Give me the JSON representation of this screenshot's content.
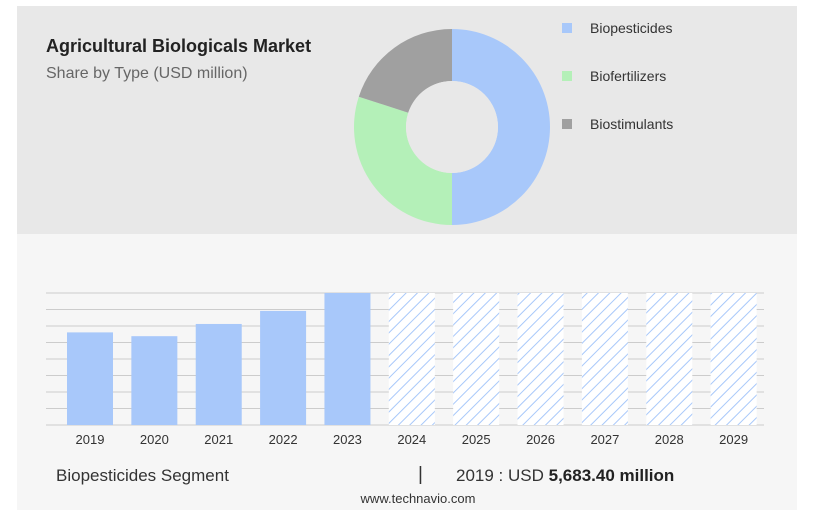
{
  "header": {
    "title": "Agricultural Biologicals Market",
    "subtitle": "Share by Type (USD million)"
  },
  "colors": {
    "biopesticides": "#a8c8fa",
    "biofertilizers": "#b4f0b8",
    "biostimulants": "#a0a0a0",
    "bar": "#a8c8fa",
    "forecast_hatch": "#a8c8fa",
    "top_panel": "#e8e8e8",
    "bottom_panel": "#f6f6f6"
  },
  "chart_data": [
    {
      "type": "pie",
      "variant": "donut",
      "title": "Share by Type (USD million)",
      "categories": [
        "Biopesticides",
        "Biofertilizers",
        "Biostimulants"
      ],
      "values": [
        50,
        30,
        20
      ],
      "legend": "right"
    },
    {
      "type": "bar",
      "categories": [
        "2019",
        "2020",
        "2021",
        "2022",
        "2023",
        "2024",
        "2025",
        "2026",
        "2027",
        "2028",
        "2029"
      ],
      "values": [
        5683.4,
        5450,
        6200,
        7000,
        8100,
        null,
        null,
        null,
        null,
        null,
        null
      ],
      "forecast": [
        "2024",
        "2025",
        "2026",
        "2027",
        "2028",
        "2029"
      ],
      "forecast_level": 8100,
      "ylim": [
        0,
        8100
      ],
      "grid": true,
      "series": [
        {
          "name": "Biopesticides Segment"
        }
      ]
    }
  ],
  "footer": {
    "segment_label": "Biopesticides Segment",
    "separator": "|",
    "value_prefix": "2019 : USD",
    "value_strong": "5,683.40 million",
    "site": "www.technavio.com"
  }
}
